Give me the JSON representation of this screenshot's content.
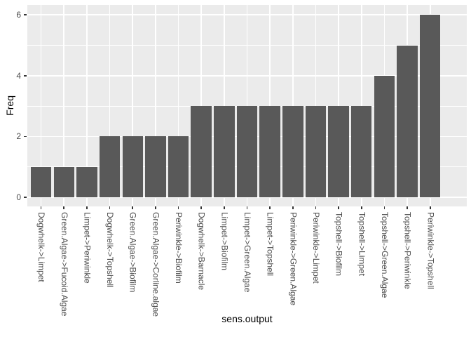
{
  "chart_data": {
    "type": "bar",
    "title": "",
    "xlabel": "sens.output",
    "ylabel": "Freq",
    "categories": [
      "Dogwhelk->Limpet",
      "Green.Algae->Fucoid.Algae",
      "Limpet->Periwinkle",
      "Dogwhelk->Topshell",
      "Green.Algae->Biofilm",
      "Green.Algae->Corline.algae",
      "Periwinkle->Biofilm",
      "Dogwhelk->Barnacle",
      "Limpet->Biofilm",
      "Limpet->Green.Algae",
      "Limpet->Topshell",
      "Periwinkle->Green.Algae",
      "Periwinkle->Limpet",
      "Topshell->Biofilm",
      "Topshell->Limpet",
      "Topshell->Green.Algae",
      "Topshell->Periwinkle",
      "Periwinkle->Topshell"
    ],
    "values": [
      1,
      1,
      1,
      2,
      2,
      2,
      2,
      3,
      3,
      3,
      3,
      3,
      3,
      3,
      3,
      4,
      5,
      6
    ],
    "ylim": [
      0,
      6
    ],
    "yticks": [
      0,
      2,
      4,
      6
    ],
    "ytick_labels": [
      "0",
      "2",
      "4",
      "6"
    ],
    "y_minor_ticks": [
      1,
      3,
      5
    ],
    "legend_position": "none",
    "grid": "major-and-minor",
    "style": "ggplot2-grey-theme",
    "colors": {
      "bar": "#595959",
      "panel_bg": "#EBEBEB",
      "gridline": "#FFFFFF",
      "axis_text": "#4D4D4D",
      "tick_mark": "#333333",
      "axis_title": "#000000",
      "outer_bg": "#FFFFFF"
    }
  }
}
